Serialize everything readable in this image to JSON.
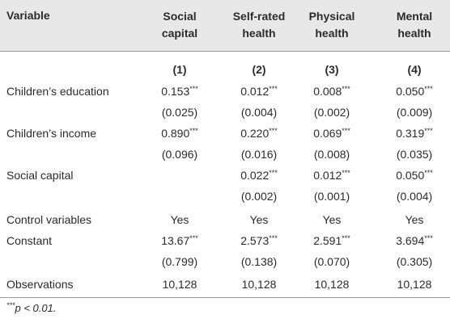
{
  "table": {
    "header": [
      "Variable",
      "Social capital",
      "Self-rated health",
      "Physical health",
      "Mental health"
    ],
    "model_numbers": [
      "(1)",
      "(2)",
      "(3)",
      "(4)"
    ],
    "rows": [
      {
        "label": "Children’s education",
        "cells": [
          {
            "value": "0.153",
            "sig": "***"
          },
          {
            "value": "0.012",
            "sig": "***"
          },
          {
            "value": "0.008",
            "sig": "***"
          },
          {
            "value": "0.050",
            "sig": "***"
          }
        ]
      },
      {
        "label": null,
        "cells": [
          {
            "value": "(0.025)"
          },
          {
            "value": "(0.004)"
          },
          {
            "value": "(0.002)"
          },
          {
            "value": "(0.009)"
          }
        ]
      },
      {
        "label": "Children’s income",
        "cells": [
          {
            "value": "0.890",
            "sig": "***"
          },
          {
            "value": "0.220",
            "sig": "***"
          },
          {
            "value": "0.069",
            "sig": "***"
          },
          {
            "value": "0.319",
            "sig": "***"
          }
        ]
      },
      {
        "label": null,
        "cells": [
          {
            "value": "(0.096)"
          },
          {
            "value": "(0.016)"
          },
          {
            "value": "(0.008)"
          },
          {
            "value": "(0.035)"
          }
        ]
      },
      {
        "label": "Social capital",
        "cells": [
          null,
          {
            "value": "0.022",
            "sig": "***"
          },
          {
            "value": "0.012",
            "sig": "***"
          },
          {
            "value": "0.050",
            "sig": "***"
          }
        ]
      },
      {
        "label": null,
        "cells": [
          null,
          {
            "value": "(0.002)"
          },
          {
            "value": "(0.001)"
          },
          {
            "value": "(0.004)"
          }
        ]
      },
      {
        "label": "Control variables",
        "cells": [
          {
            "value": "Yes"
          },
          {
            "value": "Yes"
          },
          {
            "value": "Yes"
          },
          {
            "value": "Yes"
          }
        ]
      },
      {
        "label": "Constant",
        "cells": [
          {
            "value": "13.67",
            "sig": "***"
          },
          {
            "value": "2.573",
            "sig": "***"
          },
          {
            "value": "2.591",
            "sig": "***"
          },
          {
            "value": "3.694",
            "sig": "***"
          }
        ]
      },
      {
        "label": null,
        "cells": [
          {
            "value": "(0.799)"
          },
          {
            "value": "(0.138)"
          },
          {
            "value": "(0.070)"
          },
          {
            "value": "(0.305)"
          }
        ]
      },
      {
        "label": "Observations",
        "cells": [
          {
            "value": "10,128"
          },
          {
            "value": "10,128"
          },
          {
            "value": "10,128"
          },
          {
            "value": "10,128"
          }
        ]
      }
    ]
  },
  "footnote": {
    "stars": "***",
    "text": "p < 0.01."
  }
}
